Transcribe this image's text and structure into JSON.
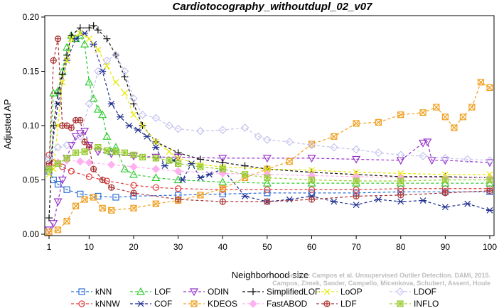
{
  "chart_data": {
    "type": "line",
    "title": "Cardiotocography_withoutdupl_02_v07",
    "xlabel": "Neighborhood size",
    "ylabel": "Adjusted AP",
    "xlim": [
      1,
      100
    ],
    "ylim": [
      0,
      0.2
    ],
    "x_ticks": [
      1,
      10,
      20,
      30,
      40,
      50,
      60,
      70,
      80,
      90,
      100
    ],
    "x_tick_labels": [
      "1",
      "10",
      "20",
      "30",
      "40",
      "50",
      "60",
      "70",
      "80",
      "90",
      "100"
    ],
    "y_ticks": [
      0,
      0.05,
      0.1,
      0.15,
      0.2
    ],
    "y_tick_labels": [
      "0.00",
      "0.05",
      "0.10",
      "0.15",
      "0.20"
    ],
    "grid": false,
    "legend_position": "bottom",
    "watermark": [
      "Source: Campos et al. Unsupervised Outlier Detection. DAMI, 2015.",
      "Campos, Zimek, Sander, Campello, Micenkova, Schubert, Assent, Houle"
    ],
    "series": [
      {
        "name": "kNN",
        "color": "#2f6fd6",
        "marker": "square",
        "points": [
          [
            1,
            0.058
          ],
          [
            2,
            0.05
          ],
          [
            3,
            0.046
          ],
          [
            5,
            0.041
          ],
          [
            8,
            0.037
          ],
          [
            12,
            0.035
          ],
          [
            16,
            0.034
          ],
          [
            20,
            0.035
          ],
          [
            30,
            0.036
          ],
          [
            40,
            0.037
          ],
          [
            50,
            0.038
          ],
          [
            60,
            0.038
          ],
          [
            70,
            0.038
          ],
          [
            80,
            0.039
          ],
          [
            90,
            0.039
          ],
          [
            100,
            0.039
          ]
        ]
      },
      {
        "name": "kNNW",
        "color": "#e03a3a",
        "marker": "circle",
        "points": [
          [
            1,
            0.073
          ],
          [
            2,
            0.066
          ],
          [
            4,
            0.062
          ],
          [
            6,
            0.058
          ],
          [
            10,
            0.053
          ],
          [
            14,
            0.049
          ],
          [
            20,
            0.045
          ],
          [
            25,
            0.043
          ],
          [
            30,
            0.042
          ],
          [
            40,
            0.041
          ],
          [
            50,
            0.041
          ],
          [
            60,
            0.041
          ],
          [
            70,
            0.041
          ],
          [
            80,
            0.042
          ],
          [
            90,
            0.042
          ],
          [
            100,
            0.042
          ]
        ]
      },
      {
        "name": "LOF",
        "color": "#33cc33",
        "marker": "triangle",
        "points": [
          [
            1,
            0.062
          ],
          [
            2,
            0.13
          ],
          [
            3,
            0.132
          ],
          [
            4,
            0.15
          ],
          [
            5,
            0.172
          ],
          [
            6,
            0.183
          ],
          [
            7,
            0.18
          ],
          [
            8,
            0.183
          ],
          [
            9,
            0.175
          ],
          [
            10,
            0.14
          ],
          [
            11,
            0.125
          ],
          [
            12,
            0.115
          ],
          [
            13,
            0.11
          ],
          [
            14,
            0.09
          ],
          [
            15,
            0.076
          ],
          [
            16,
            0.08
          ],
          [
            18,
            0.06
          ],
          [
            20,
            0.055
          ],
          [
            25,
            0.052
          ],
          [
            30,
            0.05
          ],
          [
            40,
            0.048
          ],
          [
            50,
            0.047
          ],
          [
            60,
            0.047
          ],
          [
            70,
            0.047
          ],
          [
            80,
            0.047
          ],
          [
            90,
            0.047
          ],
          [
            100,
            0.047
          ]
        ]
      },
      {
        "name": "COF",
        "color": "#1f2f8f",
        "marker": "asterisk",
        "points": [
          [
            1,
            0.06
          ],
          [
            3,
            0.12
          ],
          [
            5,
            0.16
          ],
          [
            7,
            0.18
          ],
          [
            9,
            0.185
          ],
          [
            11,
            0.175
          ],
          [
            13,
            0.15
          ],
          [
            15,
            0.12
          ],
          [
            17,
            0.108
          ],
          [
            19,
            0.1
          ],
          [
            21,
            0.096
          ],
          [
            23,
            0.09
          ],
          [
            25,
            0.08
          ],
          [
            27,
            0.063
          ],
          [
            29,
            0.068
          ],
          [
            31,
            0.05
          ],
          [
            33,
            0.065
          ],
          [
            35,
            0.052
          ],
          [
            37,
            0.055
          ],
          [
            40,
            0.06
          ],
          [
            45,
            0.035
          ],
          [
            50,
            0.03
          ],
          [
            55,
            0.032
          ],
          [
            60,
            0.035
          ],
          [
            65,
            0.03
          ],
          [
            70,
            0.027
          ],
          [
            75,
            0.032
          ],
          [
            80,
            0.03
          ],
          [
            85,
            0.031
          ],
          [
            90,
            0.025
          ],
          [
            95,
            0.028
          ],
          [
            100,
            0.022
          ]
        ]
      },
      {
        "name": "ODIN",
        "color": "#9933cc",
        "marker": "tri-down",
        "points": [
          [
            1,
            0.004
          ],
          [
            2,
            0.01
          ],
          [
            3,
            0.03
          ],
          [
            4,
            0.05
          ],
          [
            5,
            0.07
          ],
          [
            6,
            0.082
          ],
          [
            7,
            0.09
          ],
          [
            8,
            0.093
          ],
          [
            9,
            0.095
          ],
          [
            10,
            0.082
          ],
          [
            12,
            0.076
          ],
          [
            15,
            0.074
          ],
          [
            20,
            0.072
          ],
          [
            25,
            0.071
          ],
          [
            30,
            0.071
          ],
          [
            40,
            0.07
          ],
          [
            50,
            0.07
          ],
          [
            60,
            0.07
          ],
          [
            70,
            0.069
          ],
          [
            80,
            0.068
          ],
          [
            85,
            0.084
          ],
          [
            86,
            0.085
          ],
          [
            87,
            0.068
          ],
          [
            90,
            0.068
          ],
          [
            100,
            0.066
          ]
        ]
      },
      {
        "name": "KDEOS",
        "color": "#f0a020",
        "marker": "square-x",
        "points": [
          [
            1,
            0.002
          ],
          [
            3,
            0.004
          ],
          [
            5,
            0.012
          ],
          [
            7,
            0.026
          ],
          [
            9,
            0.032
          ],
          [
            11,
            0.034
          ],
          [
            13,
            0.024
          ],
          [
            15,
            0.022
          ],
          [
            20,
            0.024
          ],
          [
            25,
            0.028
          ],
          [
            30,
            0.031
          ],
          [
            35,
            0.036
          ],
          [
            40,
            0.042
          ],
          [
            45,
            0.052
          ],
          [
            50,
            0.06
          ],
          [
            55,
            0.067
          ],
          [
            60,
            0.083
          ],
          [
            65,
            0.09
          ],
          [
            70,
            0.102
          ],
          [
            75,
            0.103
          ],
          [
            80,
            0.11
          ],
          [
            85,
            0.112
          ],
          [
            88,
            0.117
          ],
          [
            90,
            0.108
          ],
          [
            92,
            0.098
          ],
          [
            94,
            0.108
          ],
          [
            96,
            0.117
          ],
          [
            98,
            0.14
          ],
          [
            100,
            0.135
          ]
        ]
      },
      {
        "name": "SimplifiedLOF",
        "color": "#111111",
        "marker": "plus",
        "points": [
          [
            1,
            0.015
          ],
          [
            2,
            0.1
          ],
          [
            3,
            0.13
          ],
          [
            4,
            0.147
          ],
          [
            5,
            0.165
          ],
          [
            6,
            0.183
          ],
          [
            8,
            0.19
          ],
          [
            10,
            0.19
          ],
          [
            11,
            0.192
          ],
          [
            12,
            0.188
          ],
          [
            14,
            0.18
          ],
          [
            16,
            0.165
          ],
          [
            18,
            0.145
          ],
          [
            20,
            0.12
          ],
          [
            22,
            0.1
          ],
          [
            25,
            0.085
          ],
          [
            30,
            0.075
          ],
          [
            35,
            0.069
          ],
          [
            40,
            0.066
          ],
          [
            45,
            0.063
          ],
          [
            50,
            0.06
          ],
          [
            60,
            0.057
          ],
          [
            70,
            0.055
          ],
          [
            80,
            0.053
          ],
          [
            90,
            0.053
          ],
          [
            100,
            0.052
          ]
        ]
      },
      {
        "name": "FastABOD",
        "color": "#ffb0f0",
        "marker": "diamond-fill",
        "points": [
          [
            1,
            0.062
          ],
          [
            3,
            0.066
          ],
          [
            5,
            0.068
          ],
          [
            8,
            0.067
          ],
          [
            10,
            0.066
          ],
          [
            15,
            0.064
          ],
          [
            20,
            0.062
          ],
          [
            25,
            0.06
          ],
          [
            30,
            0.058
          ],
          [
            40,
            0.056
          ],
          [
            50,
            0.055
          ],
          [
            60,
            0.054
          ],
          [
            70,
            0.053
          ],
          [
            80,
            0.052
          ],
          [
            90,
            0.052
          ],
          [
            100,
            0.052
          ]
        ]
      },
      {
        "name": "LoOP",
        "color": "#e8e800",
        "marker": "x",
        "points": [
          [
            1,
            0.055
          ],
          [
            2,
            0.06
          ],
          [
            3,
            0.1
          ],
          [
            4,
            0.14
          ],
          [
            5,
            0.16
          ],
          [
            6,
            0.18
          ],
          [
            8,
            0.185
          ],
          [
            10,
            0.18
          ],
          [
            12,
            0.17
          ],
          [
            14,
            0.155
          ],
          [
            16,
            0.14
          ],
          [
            18,
            0.13
          ],
          [
            20,
            0.11
          ],
          [
            22,
            0.1
          ],
          [
            25,
            0.085
          ],
          [
            28,
            0.076
          ],
          [
            30,
            0.07
          ],
          [
            35,
            0.064
          ],
          [
            40,
            0.062
          ],
          [
            50,
            0.06
          ],
          [
            60,
            0.059
          ],
          [
            70,
            0.057
          ],
          [
            80,
            0.056
          ],
          [
            90,
            0.055
          ],
          [
            100,
            0.055
          ]
        ]
      },
      {
        "name": "LDF",
        "color": "#aa3333",
        "marker": "circle-plus",
        "points": [
          [
            1,
            0.065
          ],
          [
            2,
            0.16
          ],
          [
            3,
            0.18
          ],
          [
            4,
            0.1
          ],
          [
            5,
            0.1
          ],
          [
            6,
            0.098
          ],
          [
            7,
            0.105
          ],
          [
            8,
            0.105
          ],
          [
            9,
            0.085
          ],
          [
            10,
            0.08
          ],
          [
            11,
            0.06
          ],
          [
            13,
            0.05
          ],
          [
            15,
            0.043
          ],
          [
            20,
            0.038
          ],
          [
            30,
            0.032
          ],
          [
            40,
            0.03
          ],
          [
            50,
            0.03
          ],
          [
            60,
            0.032
          ],
          [
            70,
            0.035
          ],
          [
            80,
            0.036
          ],
          [
            90,
            0.038
          ],
          [
            100,
            0.04
          ]
        ]
      },
      {
        "name": "LDOF",
        "color": "#c4c4ee",
        "marker": "diamond",
        "points": [
          [
            1,
            0.07
          ],
          [
            3,
            0.08
          ],
          [
            5,
            0.082
          ],
          [
            8,
            0.09
          ],
          [
            10,
            0.12
          ],
          [
            12,
            0.15
          ],
          [
            14,
            0.16
          ],
          [
            16,
            0.165
          ],
          [
            18,
            0.15
          ],
          [
            20,
            0.125
          ],
          [
            22,
            0.11
          ],
          [
            25,
            0.107
          ],
          [
            28,
            0.1
          ],
          [
            30,
            0.097
          ],
          [
            35,
            0.095
          ],
          [
            40,
            0.096
          ],
          [
            45,
            0.098
          ],
          [
            48,
            0.09
          ],
          [
            50,
            0.087
          ],
          [
            55,
            0.085
          ],
          [
            60,
            0.082
          ],
          [
            65,
            0.08
          ],
          [
            70,
            0.078
          ],
          [
            75,
            0.075
          ],
          [
            80,
            0.073
          ],
          [
            85,
            0.072
          ],
          [
            90,
            0.07
          ],
          [
            95,
            0.069
          ],
          [
            100,
            0.068
          ]
        ]
      },
      {
        "name": "INFLO",
        "color": "#99cc33",
        "marker": "square-star",
        "points": [
          [
            1,
            0.06
          ],
          [
            3,
            0.065
          ],
          [
            5,
            0.07
          ],
          [
            7,
            0.075
          ],
          [
            9,
            0.076
          ],
          [
            12,
            0.08
          ],
          [
            14,
            0.077
          ],
          [
            16,
            0.076
          ],
          [
            18,
            0.075
          ],
          [
            20,
            0.073
          ],
          [
            22,
            0.071
          ],
          [
            25,
            0.07
          ],
          [
            28,
            0.068
          ],
          [
            30,
            0.065
          ],
          [
            35,
            0.062
          ],
          [
            40,
            0.06
          ],
          [
            45,
            0.055
          ],
          [
            50,
            0.052
          ],
          [
            60,
            0.05
          ],
          [
            70,
            0.049
          ],
          [
            80,
            0.049
          ],
          [
            90,
            0.05
          ],
          [
            100,
            0.05
          ]
        ]
      }
    ]
  }
}
